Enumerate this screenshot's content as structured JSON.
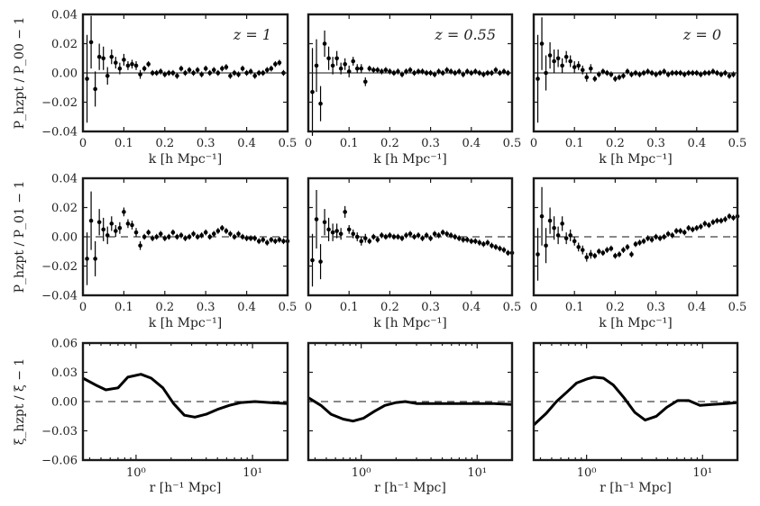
{
  "chart_data": [
    {
      "type": "scatter",
      "row": 0,
      "col": 0,
      "annotation": "z = 1",
      "xlabel": "k [h Mpc⁻¹]",
      "ylabel": "P_hzpt / P_00 − 1",
      "xlim": [
        0,
        0.5
      ],
      "ylim": [
        -0.04,
        0.04
      ],
      "xticks": [
        "0",
        "0.1",
        "0.2",
        "0.3",
        "0.4",
        "0.5"
      ],
      "yticks": [
        "−0.04",
        "−0.02",
        "0.00",
        "0.02",
        "0.04"
      ],
      "reference_line": {
        "y": 0,
        "style": "solid"
      },
      "x": [
        0.01,
        0.02,
        0.03,
        0.04,
        0.05,
        0.06,
        0.07,
        0.08,
        0.09,
        0.1,
        0.11,
        0.12,
        0.13,
        0.14,
        0.15,
        0.16,
        0.17,
        0.18,
        0.19,
        0.2,
        0.21,
        0.22,
        0.23,
        0.24,
        0.25,
        0.26,
        0.27,
        0.28,
        0.29,
        0.3,
        0.31,
        0.32,
        0.33,
        0.34,
        0.35,
        0.36,
        0.37,
        0.38,
        0.39,
        0.4,
        0.41,
        0.42,
        0.43,
        0.44,
        0.45,
        0.46,
        0.47,
        0.48,
        0.49
      ],
      "y": [
        -0.004,
        0.021,
        -0.011,
        0.011,
        0.01,
        -0.002,
        0.011,
        0.007,
        0.003,
        0.009,
        0.005,
        0.006,
        0.005,
        -0.001,
        0.003,
        0.006,
        0.0,
        0.0,
        0.001,
        -0.001,
        0.0,
        0.0,
        -0.002,
        0.003,
        0.0,
        0.002,
        0.0,
        0.002,
        -0.001,
        0.003,
        0.0,
        0.002,
        0.0,
        0.003,
        0.004,
        -0.002,
        0.0,
        -0.001,
        0.003,
        0.0,
        0.001,
        -0.002,
        0.0,
        0.0,
        0.002,
        0.003,
        0.006,
        0.007,
        0.0
      ],
      "yerr": [
        0.03,
        0.018,
        0.012,
        0.009,
        0.008,
        0.006,
        0.005,
        0.004,
        0.004,
        0.004,
        0.003,
        0.003,
        0.003,
        0.003,
        0.002,
        0.002,
        0.002,
        0.002,
        0.002,
        0.002,
        0.002,
        0.002,
        0.002,
        0.002,
        0.002,
        0.002,
        0.002,
        0.002,
        0.002,
        0.002,
        0.002,
        0.002,
        0.002,
        0.002,
        0.002,
        0.002,
        0.002,
        0.002,
        0.002,
        0.002,
        0.002,
        0.002,
        0.002,
        0.002,
        0.002,
        0.002,
        0.002,
        0.002,
        0.002
      ]
    },
    {
      "type": "scatter",
      "row": 0,
      "col": 1,
      "annotation": "z = 0.55",
      "xlabel": "k [h Mpc⁻¹]",
      "ylabel": "",
      "xlim": [
        0,
        0.5
      ],
      "ylim": [
        -0.04,
        0.04
      ],
      "xticks": [
        "0",
        "0.1",
        "0.2",
        "0.3",
        "0.4",
        "0.5"
      ],
      "yticks": [],
      "reference_line": {
        "y": 0,
        "style": "solid"
      },
      "x": [
        0.01,
        0.02,
        0.03,
        0.04,
        0.05,
        0.06,
        0.07,
        0.08,
        0.09,
        0.1,
        0.11,
        0.12,
        0.13,
        0.14,
        0.15,
        0.16,
        0.17,
        0.18,
        0.19,
        0.2,
        0.21,
        0.22,
        0.23,
        0.24,
        0.25,
        0.26,
        0.27,
        0.28,
        0.29,
        0.3,
        0.31,
        0.32,
        0.33,
        0.34,
        0.35,
        0.36,
        0.37,
        0.38,
        0.39,
        0.4,
        0.41,
        0.42,
        0.43,
        0.44,
        0.45,
        0.46,
        0.47,
        0.48,
        0.49
      ],
      "y": [
        -0.013,
        0.005,
        -0.021,
        0.02,
        0.01,
        0.005,
        0.01,
        0.003,
        0.006,
        0.001,
        0.008,
        0.003,
        0.003,
        -0.006,
        0.003,
        0.002,
        0.002,
        0.001,
        0.002,
        0.001,
        0.0,
        0.001,
        -0.001,
        0.001,
        0.002,
        0.0,
        0.001,
        0.001,
        0.0,
        0.0,
        -0.001,
        0.001,
        0.0,
        0.002,
        0.001,
        0.0,
        0.001,
        -0.001,
        0.001,
        0.0,
        0.001,
        0.0,
        -0.001,
        0.0,
        0.0,
        0.002,
        0.0,
        0.001,
        0.0
      ],
      "yerr": [
        0.03,
        0.018,
        0.012,
        0.009,
        0.008,
        0.006,
        0.005,
        0.004,
        0.004,
        0.004,
        0.003,
        0.003,
        0.003,
        0.003,
        0.002,
        0.002,
        0.002,
        0.002,
        0.002,
        0.002,
        0.002,
        0.002,
        0.002,
        0.002,
        0.002,
        0.002,
        0.002,
        0.002,
        0.002,
        0.002,
        0.002,
        0.002,
        0.002,
        0.002,
        0.002,
        0.002,
        0.002,
        0.002,
        0.002,
        0.002,
        0.002,
        0.002,
        0.002,
        0.002,
        0.002,
        0.002,
        0.002,
        0.002,
        0.002
      ]
    },
    {
      "type": "scatter",
      "row": 0,
      "col": 2,
      "annotation": "z = 0",
      "xlabel": "k [h Mpc⁻¹]",
      "ylabel": "",
      "xlim": [
        0,
        0.5
      ],
      "ylim": [
        -0.04,
        0.04
      ],
      "xticks": [
        "0",
        "0.1",
        "0.2",
        "0.3",
        "0.4",
        "0.5"
      ],
      "yticks": [],
      "reference_line": {
        "y": 0,
        "style": "solid"
      },
      "x": [
        0.01,
        0.02,
        0.03,
        0.04,
        0.05,
        0.06,
        0.07,
        0.08,
        0.09,
        0.1,
        0.11,
        0.12,
        0.13,
        0.14,
        0.15,
        0.16,
        0.17,
        0.18,
        0.19,
        0.2,
        0.21,
        0.22,
        0.23,
        0.24,
        0.25,
        0.26,
        0.27,
        0.28,
        0.29,
        0.3,
        0.31,
        0.32,
        0.33,
        0.34,
        0.35,
        0.36,
        0.37,
        0.38,
        0.39,
        0.4,
        0.41,
        0.42,
        0.43,
        0.44,
        0.45,
        0.46,
        0.47,
        0.48,
        0.49
      ],
      "y": [
        -0.004,
        0.02,
        0.0,
        0.012,
        0.008,
        0.01,
        0.005,
        0.011,
        0.008,
        0.004,
        0.005,
        0.002,
        -0.003,
        0.003,
        -0.004,
        -0.001,
        0.001,
        0.0,
        -0.001,
        -0.004,
        -0.003,
        -0.002,
        0.001,
        -0.001,
        0.0,
        -0.001,
        0.0,
        0.001,
        0.0,
        -0.001,
        0.0,
        0.001,
        -0.001,
        0.0,
        0.0,
        0.0,
        -0.001,
        0.0,
        0.0,
        0.0,
        -0.001,
        0.0,
        0.0,
        0.001,
        0.0,
        -0.001,
        0.0,
        -0.002,
        -0.001
      ],
      "yerr": [
        0.03,
        0.018,
        0.012,
        0.009,
        0.008,
        0.006,
        0.005,
        0.004,
        0.004,
        0.004,
        0.003,
        0.003,
        0.003,
        0.003,
        0.002,
        0.002,
        0.002,
        0.002,
        0.002,
        0.002,
        0.002,
        0.002,
        0.002,
        0.002,
        0.002,
        0.002,
        0.002,
        0.002,
        0.002,
        0.002,
        0.002,
        0.002,
        0.002,
        0.002,
        0.002,
        0.002,
        0.002,
        0.002,
        0.002,
        0.002,
        0.002,
        0.002,
        0.002,
        0.002,
        0.002,
        0.002,
        0.002,
        0.002,
        0.002
      ]
    },
    {
      "type": "scatter",
      "row": 1,
      "col": 0,
      "annotation": "",
      "xlabel": "k [h Mpc⁻¹]",
      "ylabel": "P_hzpt / P_01 − 1",
      "xlim": [
        0,
        0.5
      ],
      "ylim": [
        -0.04,
        0.04
      ],
      "xticks": [
        "0",
        "0.1",
        "0.2",
        "0.3",
        "0.4",
        "0.5"
      ],
      "yticks": [
        "−0.04",
        "−0.02",
        "0.00",
        "0.02",
        "0.04"
      ],
      "reference_line": {
        "y": 0,
        "style": "dashed"
      },
      "x": [
        0.01,
        0.02,
        0.03,
        0.04,
        0.05,
        0.06,
        0.07,
        0.08,
        0.09,
        0.1,
        0.11,
        0.12,
        0.13,
        0.14,
        0.15,
        0.16,
        0.17,
        0.18,
        0.19,
        0.2,
        0.21,
        0.22,
        0.23,
        0.24,
        0.25,
        0.26,
        0.27,
        0.28,
        0.29,
        0.3,
        0.31,
        0.32,
        0.33,
        0.34,
        0.35,
        0.36,
        0.37,
        0.38,
        0.39,
        0.4,
        0.41,
        0.42,
        0.43,
        0.44,
        0.45,
        0.46,
        0.47,
        0.48,
        0.49,
        0.5
      ],
      "y": [
        -0.015,
        0.011,
        -0.015,
        0.01,
        0.005,
        0.001,
        0.009,
        0.004,
        0.006,
        0.017,
        0.009,
        0.008,
        0.003,
        -0.006,
        0.0,
        0.003,
        -0.001,
        0.0,
        0.002,
        -0.001,
        0.0,
        0.003,
        0.0,
        0.001,
        -0.001,
        0.0,
        0.002,
        0.0,
        0.001,
        0.003,
        0.0,
        0.002,
        0.004,
        0.006,
        0.004,
        0.002,
        0.0,
        0.002,
        0.0,
        -0.001,
        -0.001,
        -0.001,
        -0.003,
        -0.002,
        -0.004,
        -0.002,
        -0.003,
        -0.002,
        -0.003,
        -0.003
      ],
      "yerr": [
        0.018,
        0.02,
        0.012,
        0.009,
        0.008,
        0.006,
        0.005,
        0.004,
        0.004,
        0.003,
        0.003,
        0.003,
        0.003,
        0.003,
        0.002,
        0.002,
        0.002,
        0.002,
        0.002,
        0.002,
        0.002,
        0.002,
        0.002,
        0.002,
        0.002,
        0.002,
        0.002,
        0.002,
        0.002,
        0.002,
        0.002,
        0.002,
        0.002,
        0.002,
        0.002,
        0.002,
        0.002,
        0.002,
        0.002,
        0.002,
        0.002,
        0.002,
        0.002,
        0.002,
        0.002,
        0.002,
        0.002,
        0.002,
        0.002,
        0.002
      ]
    },
    {
      "type": "scatter",
      "row": 1,
      "col": 1,
      "annotation": "",
      "xlabel": "k [h Mpc⁻¹]",
      "ylabel": "",
      "xlim": [
        0,
        0.5
      ],
      "ylim": [
        -0.04,
        0.04
      ],
      "xticks": [
        "0",
        "0.1",
        "0.2",
        "0.3",
        "0.4",
        "0.5"
      ],
      "yticks": [],
      "reference_line": {
        "y": 0,
        "style": "dashed"
      },
      "x": [
        0.01,
        0.02,
        0.03,
        0.04,
        0.05,
        0.06,
        0.07,
        0.08,
        0.09,
        0.1,
        0.11,
        0.12,
        0.13,
        0.14,
        0.15,
        0.16,
        0.17,
        0.18,
        0.19,
        0.2,
        0.21,
        0.22,
        0.23,
        0.24,
        0.25,
        0.26,
        0.27,
        0.28,
        0.29,
        0.3,
        0.31,
        0.32,
        0.33,
        0.34,
        0.35,
        0.36,
        0.37,
        0.38,
        0.39,
        0.4,
        0.41,
        0.42,
        0.43,
        0.44,
        0.45,
        0.46,
        0.47,
        0.48,
        0.49,
        0.5
      ],
      "y": [
        -0.016,
        0.012,
        -0.017,
        0.01,
        0.005,
        0.003,
        0.004,
        0.002,
        0.017,
        0.005,
        0.002,
        0.0,
        -0.003,
        -0.001,
        -0.003,
        0.0,
        -0.002,
        0.001,
        0.0,
        0.001,
        0.0,
        0.0,
        -0.001,
        0.001,
        0.002,
        0.0,
        0.001,
        -0.001,
        0.001,
        -0.001,
        0.002,
        0.001,
        0.003,
        0.002,
        0.001,
        0.0,
        -0.001,
        -0.002,
        -0.002,
        -0.003,
        -0.003,
        -0.004,
        -0.005,
        -0.004,
        -0.006,
        -0.007,
        -0.008,
        -0.009,
        -0.011,
        -0.011
      ],
      "yerr": [
        0.018,
        0.02,
        0.012,
        0.009,
        0.008,
        0.006,
        0.005,
        0.004,
        0.004,
        0.003,
        0.003,
        0.003,
        0.003,
        0.003,
        0.002,
        0.002,
        0.002,
        0.002,
        0.002,
        0.002,
        0.002,
        0.002,
        0.002,
        0.002,
        0.002,
        0.002,
        0.002,
        0.002,
        0.002,
        0.002,
        0.002,
        0.002,
        0.002,
        0.002,
        0.002,
        0.002,
        0.002,
        0.002,
        0.002,
        0.002,
        0.002,
        0.002,
        0.002,
        0.002,
        0.002,
        0.002,
        0.002,
        0.002,
        0.002,
        0.002
      ]
    },
    {
      "type": "scatter",
      "row": 1,
      "col": 2,
      "annotation": "",
      "xlabel": "k [h Mpc⁻¹]",
      "ylabel": "",
      "xlim": [
        0,
        0.5
      ],
      "ylim": [
        -0.04,
        0.04
      ],
      "xticks": [
        "0",
        "0.1",
        "0.2",
        "0.3",
        "0.4",
        "0.5"
      ],
      "yticks": [],
      "reference_line": {
        "y": 0,
        "style": "dashed"
      },
      "x": [
        0.01,
        0.02,
        0.03,
        0.04,
        0.05,
        0.06,
        0.07,
        0.08,
        0.09,
        0.1,
        0.11,
        0.12,
        0.13,
        0.14,
        0.15,
        0.16,
        0.17,
        0.18,
        0.19,
        0.2,
        0.21,
        0.22,
        0.23,
        0.24,
        0.25,
        0.26,
        0.27,
        0.28,
        0.29,
        0.3,
        0.31,
        0.32,
        0.33,
        0.34,
        0.35,
        0.36,
        0.37,
        0.38,
        0.39,
        0.4,
        0.41,
        0.42,
        0.43,
        0.44,
        0.45,
        0.46,
        0.47,
        0.48,
        0.49,
        0.5
      ],
      "y": [
        -0.012,
        0.014,
        -0.006,
        0.011,
        0.006,
        0.001,
        0.009,
        -0.001,
        0.001,
        -0.003,
        -0.007,
        -0.009,
        -0.014,
        -0.012,
        -0.013,
        -0.01,
        -0.011,
        -0.009,
        -0.008,
        -0.013,
        -0.012,
        -0.009,
        -0.007,
        -0.012,
        -0.005,
        -0.004,
        -0.003,
        -0.001,
        -0.002,
        0.0,
        -0.001,
        0.0,
        0.002,
        0.001,
        0.004,
        0.004,
        0.003,
        0.006,
        0.005,
        0.006,
        0.007,
        0.009,
        0.008,
        0.01,
        0.011,
        0.011,
        0.012,
        0.014,
        0.013,
        0.014
      ],
      "yerr": [
        0.018,
        0.02,
        0.012,
        0.009,
        0.008,
        0.006,
        0.005,
        0.004,
        0.004,
        0.003,
        0.003,
        0.003,
        0.003,
        0.003,
        0.002,
        0.002,
        0.002,
        0.002,
        0.002,
        0.002,
        0.002,
        0.002,
        0.002,
        0.002,
        0.002,
        0.002,
        0.002,
        0.002,
        0.002,
        0.002,
        0.002,
        0.002,
        0.002,
        0.002,
        0.002,
        0.002,
        0.002,
        0.002,
        0.002,
        0.002,
        0.002,
        0.002,
        0.002,
        0.002,
        0.002,
        0.002,
        0.002,
        0.002,
        0.002,
        0.002
      ]
    },
    {
      "type": "line",
      "row": 2,
      "col": 0,
      "xscale": "log",
      "annotation": "",
      "xlabel": "r [h⁻¹ Mpc]",
      "ylabel": "ξ_hzpt / ξ − 1",
      "xlim": [
        0.35,
        20
      ],
      "ylim": [
        -0.06,
        0.06
      ],
      "xticks": [
        {
          "value": 1,
          "label": "10⁰"
        },
        {
          "value": 10,
          "label": "10¹"
        }
      ],
      "yticks": [
        "−0.06",
        "−0.03",
        "0.00",
        "0.03",
        "0.06"
      ],
      "reference_line": {
        "y": 0,
        "style": "dashed"
      },
      "x": [
        0.35,
        0.45,
        0.55,
        0.7,
        0.85,
        1.1,
        1.35,
        1.7,
        2.1,
        2.6,
        3.2,
        4.0,
        5.0,
        6.3,
        8.0,
        10.5,
        14,
        20
      ],
      "y": [
        0.024,
        0.017,
        0.012,
        0.014,
        0.025,
        0.028,
        0.024,
        0.014,
        -0.002,
        -0.014,
        -0.016,
        -0.013,
        -0.008,
        -0.004,
        -0.001,
        0.0,
        -0.001,
        -0.002
      ]
    },
    {
      "type": "line",
      "row": 2,
      "col": 1,
      "xscale": "log",
      "annotation": "",
      "xlabel": "r [h⁻¹ Mpc]",
      "ylabel": "",
      "xlim": [
        0.35,
        20
      ],
      "ylim": [
        -0.06,
        0.06
      ],
      "xticks": [
        {
          "value": 1,
          "label": "10⁰"
        },
        {
          "value": 10,
          "label": "10¹"
        }
      ],
      "yticks": [],
      "reference_line": {
        "y": 0,
        "style": "dashed"
      },
      "x": [
        0.35,
        0.45,
        0.55,
        0.7,
        0.85,
        1.05,
        1.3,
        1.6,
        2.0,
        2.4,
        3.0,
        4.0,
        5.5,
        7.5,
        10,
        14,
        20
      ],
      "y": [
        0.004,
        -0.004,
        -0.013,
        -0.018,
        -0.02,
        -0.017,
        -0.01,
        -0.004,
        -0.001,
        0.0,
        -0.002,
        -0.002,
        -0.002,
        -0.002,
        -0.002,
        -0.002,
        -0.003
      ]
    },
    {
      "type": "line",
      "row": 2,
      "col": 2,
      "xscale": "log",
      "annotation": "",
      "xlabel": "r [h⁻¹ Mpc]",
      "ylabel": "",
      "xlim": [
        0.35,
        20
      ],
      "ylim": [
        -0.06,
        0.06
      ],
      "xticks": [
        {
          "value": 1,
          "label": "10⁰"
        },
        {
          "value": 10,
          "label": "10¹"
        }
      ],
      "yticks": [],
      "reference_line": {
        "y": 0,
        "style": "dashed"
      },
      "x": [
        0.35,
        0.45,
        0.55,
        0.68,
        0.82,
        1.0,
        1.15,
        1.4,
        1.7,
        2.1,
        2.6,
        3.2,
        4.0,
        4.9,
        6.1,
        7.6,
        9.5,
        12,
        16,
        20
      ],
      "y": [
        -0.024,
        -0.012,
        0.0,
        0.01,
        0.019,
        0.023,
        0.025,
        0.024,
        0.017,
        0.004,
        -0.011,
        -0.019,
        -0.015,
        -0.006,
        0.001,
        0.001,
        -0.004,
        -0.003,
        -0.002,
        -0.001
      ]
    }
  ]
}
